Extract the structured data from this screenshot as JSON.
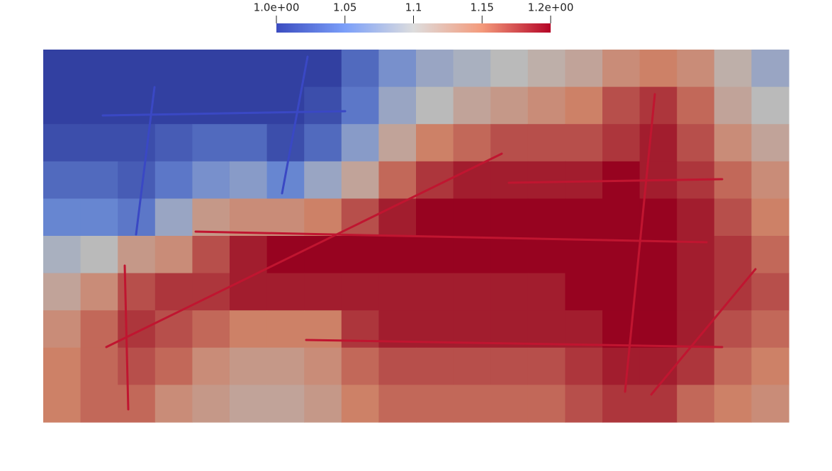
{
  "chart_data": {
    "type": "heatmap",
    "clim": [
      1.0,
      1.2
    ],
    "cticks": [
      {
        "value": 1.0,
        "label": "1.0e+00"
      },
      1.05,
      1.1,
      1.15,
      {
        "value": 1.2,
        "label": "1.2e+00"
      }
    ],
    "colormap": [
      "#3b4cc0",
      "#7b9ff9",
      "#dddddd",
      "#f49a7b",
      "#b40426"
    ],
    "values": [
      [
        1.0,
        1.0,
        1.0,
        1.0,
        1.0,
        1.0,
        1.0,
        1.0,
        1.03,
        1.06,
        1.08,
        1.09,
        1.1,
        1.11,
        1.12,
        1.14,
        1.15,
        1.14,
        1.11,
        1.08
      ],
      [
        1.0,
        1.0,
        1.0,
        1.0,
        1.0,
        1.0,
        1.0,
        1.01,
        1.04,
        1.08,
        1.1,
        1.12,
        1.13,
        1.14,
        1.15,
        1.17,
        1.18,
        1.16,
        1.12,
        1.1
      ],
      [
        1.01,
        1.01,
        1.01,
        1.02,
        1.03,
        1.03,
        1.01,
        1.03,
        1.07,
        1.12,
        1.15,
        1.16,
        1.17,
        1.17,
        1.17,
        1.18,
        1.19,
        1.17,
        1.14,
        1.12
      ],
      [
        1.03,
        1.03,
        1.02,
        1.04,
        1.06,
        1.07,
        1.05,
        1.08,
        1.12,
        1.16,
        1.18,
        1.19,
        1.19,
        1.19,
        1.19,
        1.2,
        1.19,
        1.18,
        1.16,
        1.14
      ],
      [
        1.05,
        1.05,
        1.04,
        1.08,
        1.13,
        1.14,
        1.14,
        1.15,
        1.17,
        1.19,
        1.2,
        1.2,
        1.2,
        1.2,
        1.2,
        1.2,
        1.2,
        1.19,
        1.17,
        1.15
      ],
      [
        1.09,
        1.1,
        1.13,
        1.14,
        1.17,
        1.19,
        1.2,
        1.2,
        1.2,
        1.2,
        1.2,
        1.2,
        1.2,
        1.2,
        1.2,
        1.2,
        1.2,
        1.19,
        1.18,
        1.16
      ],
      [
        1.12,
        1.14,
        1.17,
        1.18,
        1.18,
        1.19,
        1.19,
        1.19,
        1.19,
        1.19,
        1.19,
        1.19,
        1.19,
        1.19,
        1.2,
        1.2,
        1.2,
        1.19,
        1.18,
        1.17
      ],
      [
        1.14,
        1.16,
        1.18,
        1.17,
        1.16,
        1.15,
        1.15,
        1.15,
        1.18,
        1.19,
        1.19,
        1.19,
        1.19,
        1.19,
        1.19,
        1.2,
        1.2,
        1.19,
        1.17,
        1.16
      ],
      [
        1.15,
        1.16,
        1.17,
        1.16,
        1.14,
        1.13,
        1.13,
        1.14,
        1.16,
        1.17,
        1.17,
        1.17,
        1.17,
        1.17,
        1.18,
        1.19,
        1.19,
        1.18,
        1.16,
        1.15
      ],
      [
        1.15,
        1.16,
        1.16,
        1.14,
        1.13,
        1.12,
        1.12,
        1.13,
        1.15,
        1.16,
        1.16,
        1.16,
        1.16,
        1.16,
        1.17,
        1.18,
        1.18,
        1.16,
        1.15,
        1.14
      ]
    ]
  }
}
